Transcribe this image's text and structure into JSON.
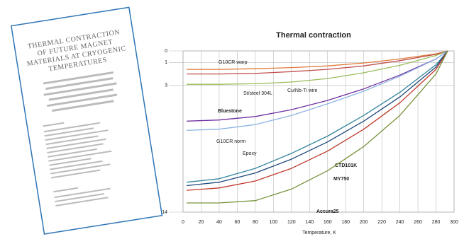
{
  "chart_data": {
    "type": "line",
    "title": "Thermal contraction",
    "xlabel": "Temperature, K",
    "x": [
      4,
      40,
      80,
      120,
      160,
      200,
      240,
      280,
      293
    ],
    "xlim": [
      0,
      300
    ],
    "xticks": [
      0,
      20,
      40,
      60,
      80,
      100,
      120,
      140,
      160,
      180,
      200,
      220,
      240,
      260,
      280,
      300
    ],
    "ylim": [
      0,
      14
    ],
    "yticks": [
      0,
      1,
      3,
      14
    ],
    "y_inverted": true,
    "grid": true,
    "series": [
      {
        "name": "G10CR warp",
        "color": "#e07b39",
        "values": [
          1.6,
          1.6,
          1.55,
          1.45,
          1.3,
          1.05,
          0.7,
          0.25,
          0
        ]
      },
      {
        "name": "Cu/Nb-Ti wire",
        "color": "#c0504d",
        "values": [
          2.0,
          2.0,
          1.95,
          1.8,
          1.6,
          1.3,
          0.85,
          0.3,
          0
        ]
      },
      {
        "name": "St/steel 304L",
        "color": "#9bbb59",
        "values": [
          2.9,
          2.9,
          2.85,
          2.7,
          2.4,
          1.9,
          1.25,
          0.4,
          0
        ]
      },
      {
        "name": "Bluestone",
        "color": "#7030a0",
        "values": [
          6.1,
          6.0,
          5.7,
          5.1,
          4.3,
          3.3,
          2.1,
          0.7,
          0
        ]
      },
      {
        "name": "G10CR norm",
        "color": "#8db3e2",
        "values": [
          6.9,
          6.8,
          6.4,
          5.6,
          4.6,
          3.5,
          2.2,
          0.7,
          0
        ]
      },
      {
        "name": "Epoxy",
        "color": "#31859c",
        "values": [
          11.4,
          11.1,
          10.2,
          8.9,
          7.4,
          5.6,
          3.6,
          1.2,
          0
        ]
      },
      {
        "name": "CTD101K",
        "color": "#1f497d",
        "values": [
          11.7,
          11.4,
          10.6,
          9.4,
          7.9,
          6.1,
          4.0,
          1.4,
          0
        ]
      },
      {
        "name": "MY750",
        "color": "#c0392b",
        "values": [
          12.1,
          11.9,
          11.3,
          10.2,
          8.7,
          6.8,
          4.5,
          1.6,
          0
        ]
      },
      {
        "name": "Accura25",
        "color": "#77933c",
        "values": [
          13.2,
          13.2,
          13.0,
          12.0,
          10.4,
          8.3,
          5.6,
          2.0,
          0
        ]
      }
    ]
  },
  "document": {
    "title_lines": [
      "THERMAL CONTRACTION",
      "OF FUTURE MAGNET",
      "MATERIALS AT CRYOGENIC",
      "TEMPERATURES"
    ]
  }
}
